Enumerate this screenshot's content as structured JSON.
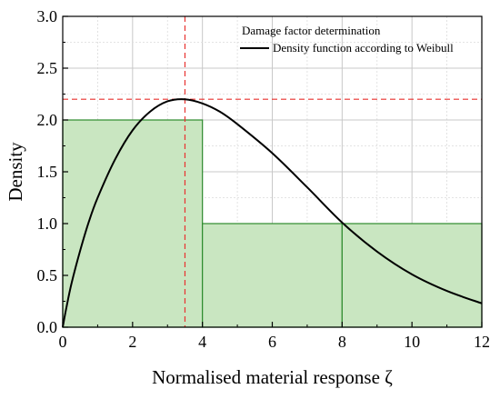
{
  "chart_data": {
    "type": "line",
    "title": "",
    "xlabel": "Normalised material response ζ",
    "ylabel": "Density",
    "xlim": [
      0,
      12
    ],
    "ylim": [
      0,
      3.0
    ],
    "x_ticks": [
      "0",
      "2",
      "4",
      "6",
      "8",
      "10",
      "12"
    ],
    "y_ticks": [
      "0.0",
      "0.5",
      "1.0",
      "1.5",
      "2.0",
      "2.5",
      "3.0"
    ],
    "grid": true,
    "legend_position": "top-right",
    "series": [
      {
        "name": "Damage factor determination",
        "kind": "step-area",
        "color": "#2e8b2e",
        "fill": "#c9e6c1",
        "bins": [
          {
            "x0": 0,
            "x1": 4,
            "y": 2.0
          },
          {
            "x0": 4,
            "x1": 8,
            "y": 1.0
          },
          {
            "x0": 8,
            "x1": 12,
            "y": 1.0
          }
        ]
      },
      {
        "name": "Density function according to Weibull",
        "kind": "line",
        "color": "#000000",
        "x": [
          0,
          0.1,
          0.25,
          0.5,
          0.75,
          1.0,
          1.5,
          2.0,
          2.5,
          3.0,
          3.5,
          4.0,
          4.5,
          5.0,
          6.0,
          7.0,
          8.0,
          9.0,
          10.0,
          11.0,
          12.0
        ],
        "y": [
          0,
          0.18,
          0.42,
          0.74,
          1.02,
          1.25,
          1.62,
          1.9,
          2.08,
          2.18,
          2.2,
          2.16,
          2.08,
          1.96,
          1.68,
          1.35,
          1.01,
          0.73,
          0.51,
          0.35,
          0.23
        ]
      }
    ],
    "reference_lines": {
      "color": "#e8312f",
      "x": 3.5,
      "y": 2.2
    }
  }
}
